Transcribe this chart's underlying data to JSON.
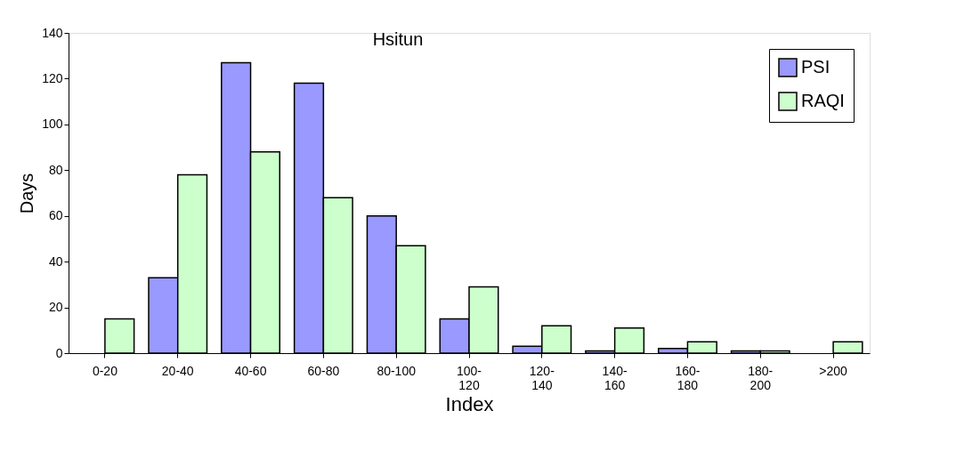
{
  "chart_data": {
    "type": "bar",
    "title": "Hsitun",
    "xlabel": "Index",
    "ylabel": "Days",
    "categories": [
      "0-20",
      "20-40",
      "40-60",
      "60-80",
      "80-100",
      "100-\n120",
      "120-\n140",
      "140-\n160",
      "160-\n180",
      "180-\n200",
      ">200"
    ],
    "series": [
      {
        "name": "PSI",
        "color": "#9999ff",
        "values": [
          null,
          33,
          127,
          118,
          60,
          15,
          3,
          1,
          2,
          1,
          null
        ]
      },
      {
        "name": "RAQI",
        "color": "#ccffcc",
        "values": [
          15,
          78,
          88,
          68,
          47,
          29,
          12,
          11,
          5,
          1,
          5
        ]
      }
    ],
    "ylim": [
      0,
      140
    ],
    "yticks": [
      0,
      20,
      40,
      60,
      80,
      100,
      120,
      140
    ],
    "grid": false,
    "legend": "top right"
  }
}
